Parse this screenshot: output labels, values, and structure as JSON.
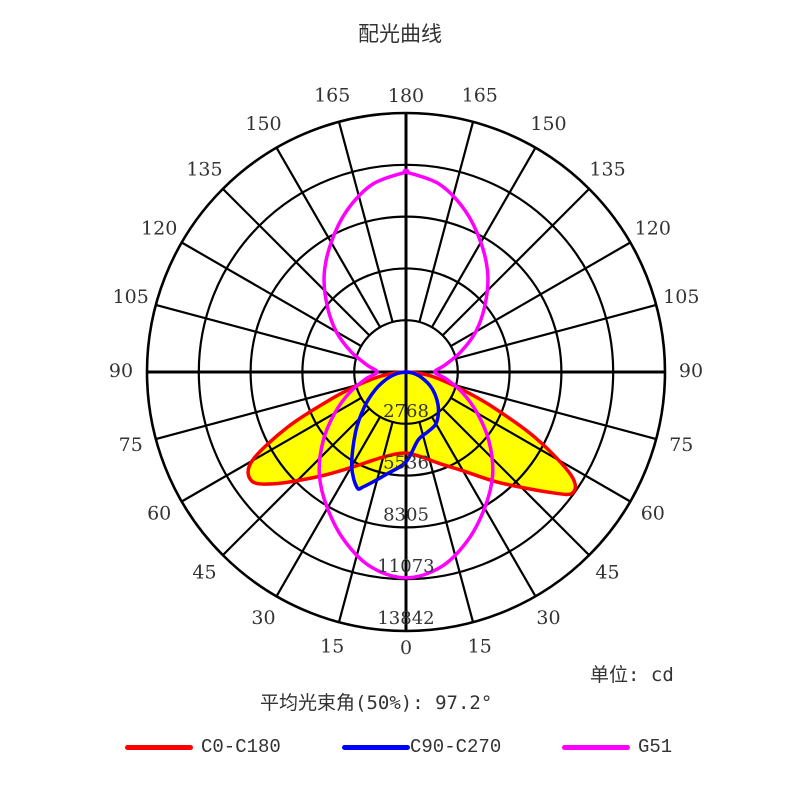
{
  "title": "配光曲线",
  "unit_label": "单位: cd",
  "beam_angle_label": "平均光束角(50%): 97.2°",
  "legend": [
    {
      "label": "C0-C180",
      "color": "#ff0000"
    },
    {
      "label": "C90-C270",
      "color": "#0000ff"
    },
    {
      "label": "G51",
      "color": "#ff00ff"
    }
  ],
  "chart_data": {
    "type": "polar",
    "title": "配光曲线",
    "unit": "cd",
    "rmax": 13842,
    "ring_values": [
      2768,
      5536,
      8305,
      11073,
      13842
    ],
    "angle_ticks_left": [
      0,
      15,
      30,
      45,
      60,
      75,
      90,
      105,
      120,
      135,
      150,
      165,
      180
    ],
    "angle_ticks_right": [
      15,
      30,
      45,
      60,
      75,
      90,
      105,
      120,
      135,
      150,
      165
    ],
    "angle_convention": "0 = downward (nadir), 180 = upward; left and right half-planes",
    "beam_angle_50pct_deg": 97.2,
    "fill_color": "#ffff00",
    "series": [
      {
        "name": "C0-C180",
        "color": "#ff0000",
        "filled": true,
        "left_plane": "C0",
        "right_plane": "C180",
        "left": [
          [
            0,
            4330
          ],
          [
            10,
            4500
          ],
          [
            20,
            5000
          ],
          [
            30,
            5900
          ],
          [
            40,
            7300
          ],
          [
            50,
            9300
          ],
          [
            55,
            10100
          ],
          [
            60,
            9500
          ],
          [
            65,
            7000
          ],
          [
            70,
            4300
          ],
          [
            75,
            2600
          ],
          [
            80,
            1500
          ],
          [
            85,
            600
          ],
          [
            90,
            0
          ]
        ],
        "right": [
          [
            0,
            4330
          ],
          [
            10,
            4600
          ],
          [
            20,
            5200
          ],
          [
            30,
            6100
          ],
          [
            40,
            7700
          ],
          [
            50,
            10000
          ],
          [
            54,
            11000
          ],
          [
            58,
            10400
          ],
          [
            63,
            7800
          ],
          [
            68,
            5000
          ],
          [
            73,
            3000
          ],
          [
            80,
            1500
          ],
          [
            85,
            600
          ],
          [
            90,
            0
          ]
        ]
      },
      {
        "name": "C90-C270",
        "color": "#0000ff",
        "filled": true,
        "left_plane": "C90",
        "right_plane": "C270",
        "left": [
          [
            0,
            4800
          ],
          [
            10,
            5500
          ],
          [
            20,
            6500
          ],
          [
            23,
            6700
          ],
          [
            30,
            5800
          ],
          [
            40,
            4200
          ],
          [
            50,
            2900
          ],
          [
            60,
            1900
          ],
          [
            70,
            1100
          ],
          [
            80,
            500
          ],
          [
            90,
            0
          ]
        ],
        "right": [
          [
            0,
            4300
          ],
          [
            10,
            3700
          ],
          [
            20,
            3400
          ],
          [
            30,
            3200
          ],
          [
            40,
            2700
          ],
          [
            50,
            2100
          ],
          [
            60,
            1500
          ],
          [
            70,
            900
          ],
          [
            80,
            400
          ],
          [
            90,
            0
          ]
        ]
      },
      {
        "name": "G51",
        "color": "#ff00ff",
        "filled": false,
        "symmetric": true,
        "values": [
          [
            0,
            11000
          ],
          [
            10,
            10600
          ],
          [
            20,
            9600
          ],
          [
            30,
            8400
          ],
          [
            40,
            7200
          ],
          [
            50,
            5800
          ],
          [
            60,
            4400
          ],
          [
            70,
            3200
          ],
          [
            80,
            2200
          ],
          [
            90,
            1550
          ],
          [
            100,
            2100
          ],
          [
            110,
            3100
          ],
          [
            120,
            4300
          ],
          [
            130,
            5500
          ],
          [
            140,
            6800
          ],
          [
            150,
            8000
          ],
          [
            160,
            9200
          ],
          [
            170,
            10200
          ],
          [
            180,
            10690
          ]
        ]
      }
    ]
  }
}
